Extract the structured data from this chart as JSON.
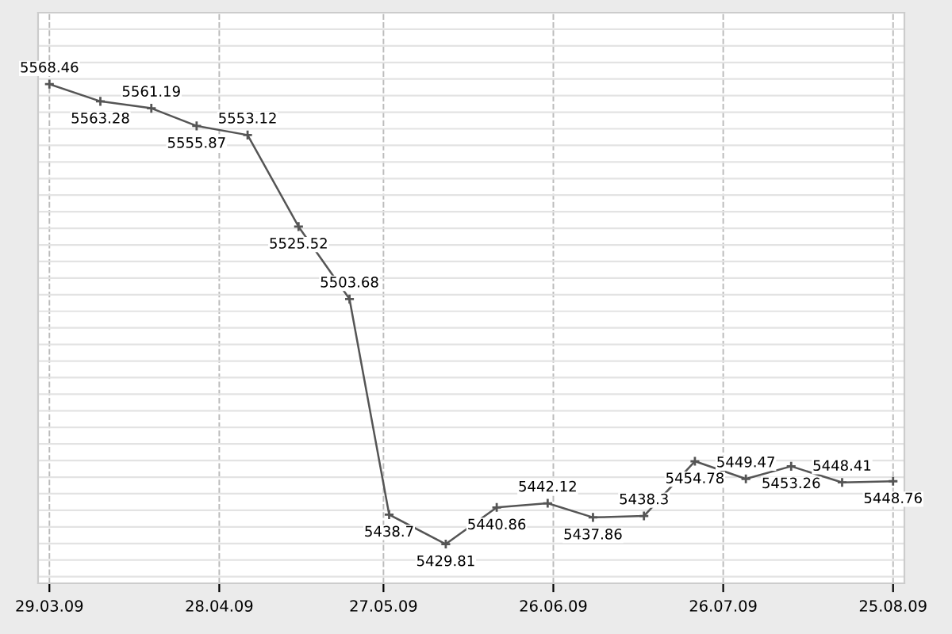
{
  "chart_data": {
    "type": "line",
    "x": [
      "2009-03-29",
      "2009-04-07",
      "2009-04-16",
      "2009-04-24",
      "2009-05-03",
      "2009-05-12",
      "2009-05-21",
      "2009-05-28",
      "2009-06-07",
      "2009-06-16",
      "2009-06-25",
      "2009-07-03",
      "2009-07-12",
      "2009-07-21",
      "2009-07-30",
      "2009-08-07",
      "2009-08-16",
      "2009-08-25"
    ],
    "series": [
      {
        "color": "#555555",
        "values": [
          5568.46,
          5563.28,
          5561.19,
          5555.87,
          5553.12,
          5525.52,
          5503.68,
          5438.7,
          5429.81,
          5440.86,
          5442.12,
          5437.86,
          5438.3,
          5454.78,
          5449.47,
          5453.26,
          5448.41,
          5448.76
        ]
      }
    ],
    "data_labels": true,
    "marker": "cross",
    "line_style": "solid",
    "grid": true,
    "tick_labels": "x",
    "xlim": [
      "2009-03-27",
      "2009-08-27"
    ],
    "xticks": [
      {
        "value": "2009-03-29",
        "label": "29.03.09"
      },
      {
        "value": "2009-04-28",
        "label": "28.04.09"
      },
      {
        "value": "2009-05-27",
        "label": "27.05.09"
      },
      {
        "value": "2009-06-26",
        "label": "26.06.09"
      },
      {
        "value": "2009-07-26",
        "label": "26.07.09"
      },
      {
        "value": "2009-08-25",
        "label": "25.08.09"
      }
    ],
    "ylim": [
      5418,
      5590
    ],
    "yticks": [
      {
        "value": 5420,
        "label": null
      },
      {
        "value": 5425,
        "label": null
      },
      {
        "value": 5430,
        "label": null
      },
      {
        "value": 5435,
        "label": null
      },
      {
        "value": 5440,
        "label": null
      },
      {
        "value": 5445,
        "label": null
      },
      {
        "value": 5450,
        "label": null
      },
      {
        "value": 5455,
        "label": null
      },
      {
        "value": 5460,
        "label": null
      },
      {
        "value": 5465,
        "label": null
      },
      {
        "value": 5470,
        "label": null
      },
      {
        "value": 5475,
        "label": null
      },
      {
        "value": 5480,
        "label": null
      },
      {
        "value": 5485,
        "label": null
      },
      {
        "value": 5490,
        "label": null
      },
      {
        "value": 5495,
        "label": null
      },
      {
        "value": 5500,
        "label": null
      },
      {
        "value": 5505,
        "label": null
      },
      {
        "value": 5510,
        "label": null
      },
      {
        "value": 5515,
        "label": null
      },
      {
        "value": 5520,
        "label": null
      },
      {
        "value": 5525,
        "label": null
      },
      {
        "value": 5530,
        "label": null
      },
      {
        "value": 5535,
        "label": null
      },
      {
        "value": 5540,
        "label": null
      },
      {
        "value": 5545,
        "label": null
      },
      {
        "value": 5550,
        "label": null
      },
      {
        "value": 5555,
        "label": null
      },
      {
        "value": 5560,
        "label": null
      },
      {
        "value": 5565,
        "label": null
      },
      {
        "value": 5570,
        "label": null
      },
      {
        "value": 5575,
        "label": null
      },
      {
        "value": 5580,
        "label": null
      },
      {
        "value": 5585,
        "label": null
      }
    ]
  }
}
